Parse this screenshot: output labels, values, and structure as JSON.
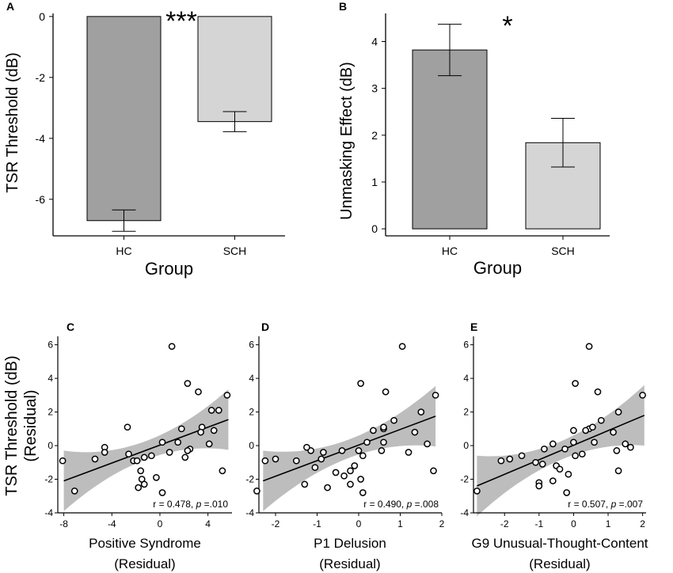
{
  "chart_data": [
    {
      "panel": "A",
      "type": "bar",
      "categories": [
        "HC",
        "SCH"
      ],
      "values": [
        -6.7,
        -3.45
      ],
      "errors": [
        0.35,
        0.33
      ],
      "colors": [
        "#a0a0a0",
        "#d5d5d5"
      ],
      "xlabel": "Group",
      "ylabel": "TSR Threshold (dB)",
      "ylim": [
        -7.2,
        0.1
      ],
      "yticks": [
        0,
        -2,
        -4,
        -6
      ],
      "significance": "***"
    },
    {
      "panel": "B",
      "type": "bar",
      "categories": [
        "HC",
        "SCH"
      ],
      "values": [
        3.82,
        1.84
      ],
      "errors": [
        0.55,
        0.52
      ],
      "colors": [
        "#a0a0a0",
        "#d5d5d5"
      ],
      "xlabel": "Group",
      "ylabel": "Unmasking Effect (dB)",
      "ylim": [
        -0.15,
        4.6
      ],
      "yticks": [
        0,
        1,
        2,
        3,
        4
      ],
      "significance": "*"
    },
    {
      "panel": "C",
      "type": "scatter",
      "xlabel": "Positive Syndrome",
      "xlabel2": "(Residual)",
      "ylabel": "TSR Threshold (dB)",
      "ylabel2": "(Residual)",
      "xlim": [
        -8.5,
        6
      ],
      "ylim": [
        -4,
        6.5
      ],
      "xticks": [
        -8,
        -4,
        0,
        4
      ],
      "yticks": [
        6,
        4,
        2,
        0,
        -2,
        -4
      ],
      "fit": {
        "x": [
          -8,
          5.7
        ],
        "y": [
          -2.1,
          1.55
        ]
      },
      "stat": {
        "prefix": "r = 0.478, ",
        "p": "p",
        "suffix": " =.010"
      },
      "points": [
        {
          "x": 1,
          "y": 5.9
        },
        {
          "x": 2.3,
          "y": 3.7
        },
        {
          "x": 3.2,
          "y": 3.2
        },
        {
          "x": 5.6,
          "y": 3.0
        },
        {
          "x": 3.5,
          "y": 1.1
        },
        {
          "x": 3.4,
          "y": 0.8
        },
        {
          "x": 4.3,
          "y": 2.1
        },
        {
          "x": 4.9,
          "y": 2.1
        },
        {
          "x": 4.5,
          "y": 0.9
        },
        {
          "x": 4.1,
          "y": 0.1
        },
        {
          "x": 1.8,
          "y": 1.0
        },
        {
          "x": 1.5,
          "y": 0.2
        },
        {
          "x": 0.2,
          "y": 0.2
        },
        {
          "x": 2.5,
          "y": -0.2
        },
        {
          "x": 2.3,
          "y": -0.3
        },
        {
          "x": 2.1,
          "y": -0.7
        },
        {
          "x": 5.2,
          "y": -1.5
        },
        {
          "x": -2.7,
          "y": 1.1
        },
        {
          "x": -4.6,
          "y": -0.1
        },
        {
          "x": -4.6,
          "y": -0.4
        },
        {
          "x": -5.4,
          "y": -0.8
        },
        {
          "x": -2.6,
          "y": -0.5
        },
        {
          "x": -2.2,
          "y": -0.9
        },
        {
          "x": -1.9,
          "y": -0.9
        },
        {
          "x": -1.3,
          "y": -0.7
        },
        {
          "x": -1.6,
          "y": -1.5
        },
        {
          "x": -1.5,
          "y": -2.0
        },
        {
          "x": -1.3,
          "y": -2.3
        },
        {
          "x": -1.8,
          "y": -2.5
        },
        {
          "x": -0.3,
          "y": -1.9
        },
        {
          "x": 0.2,
          "y": -2.8
        },
        {
          "x": -0.7,
          "y": -0.6
        },
        {
          "x": 0.8,
          "y": -0.4
        },
        {
          "x": -7.1,
          "y": -2.7
        },
        {
          "x": -8.1,
          "y": -0.9
        }
      ]
    },
    {
      "panel": "D",
      "type": "scatter",
      "xlabel": "P1 Delusion",
      "xlabel2": "(Residual)",
      "xlim": [
        -2.4,
        2
      ],
      "ylim": [
        -4,
        6.5
      ],
      "xticks": [
        -2,
        -1,
        0,
        1,
        2
      ],
      "yticks": [
        6,
        4,
        2,
        0,
        -2,
        -4
      ],
      "fit": {
        "x": [
          -2.3,
          1.85
        ],
        "y": [
          -2.1,
          1.75
        ]
      },
      "stat": {
        "prefix": "r = 0.490, ",
        "p": "p",
        "suffix": " =.008"
      },
      "points": [
        {
          "x": 1.05,
          "y": 5.9
        },
        {
          "x": 0.05,
          "y": 3.7
        },
        {
          "x": 0.65,
          "y": 3.2
        },
        {
          "x": 1.85,
          "y": 3.0
        },
        {
          "x": 1.5,
          "y": 2.0
        },
        {
          "x": 0.85,
          "y": 1.5
        },
        {
          "x": 0.6,
          "y": 1.0
        },
        {
          "x": 0.6,
          "y": 1.1
        },
        {
          "x": 0.35,
          "y": 0.9
        },
        {
          "x": 0.6,
          "y": 0.2
        },
        {
          "x": 1.35,
          "y": 0.8
        },
        {
          "x": 1.65,
          "y": 0.1
        },
        {
          "x": 1.2,
          "y": -0.4
        },
        {
          "x": 0.2,
          "y": 0.2
        },
        {
          "x": 0.55,
          "y": -0.3
        },
        {
          "x": 0.1,
          "y": -0.6
        },
        {
          "x": -0.4,
          "y": -0.3
        },
        {
          "x": -0.1,
          "y": -1.2
        },
        {
          "x": -0.2,
          "y": -1.5
        },
        {
          "x": -0.55,
          "y": -1.6
        },
        {
          "x": -0.2,
          "y": -2.3
        },
        {
          "x": 0.05,
          "y": -2.0
        },
        {
          "x": 0.1,
          "y": -2.8
        },
        {
          "x": -0.35,
          "y": -1.8
        },
        {
          "x": -0.85,
          "y": -0.4
        },
        {
          "x": -0.9,
          "y": -0.8
        },
        {
          "x": -1.15,
          "y": -0.3
        },
        {
          "x": -1.25,
          "y": -0.1
        },
        {
          "x": -1.05,
          "y": -1.3
        },
        {
          "x": -0.75,
          "y": -2.5
        },
        {
          "x": -1.3,
          "y": -2.3
        },
        {
          "x": -1.5,
          "y": -0.9
        },
        {
          "x": -2.0,
          "y": -0.8
        },
        {
          "x": -2.25,
          "y": -0.9
        },
        {
          "x": -2.45,
          "y": -2.7
        },
        {
          "x": 1.8,
          "y": -1.5
        },
        {
          "x": 0.0,
          "y": -0.3
        }
      ]
    },
    {
      "panel": "E",
      "type": "scatter",
      "xlabel": "G9 Unusual-Thought-Content",
      "xlabel2": "(Residual)",
      "xlim": [
        -2.9,
        2.1
      ],
      "ylim": [
        -4,
        6.5
      ],
      "xticks": [
        -2,
        -1,
        0,
        1,
        2
      ],
      "yticks": [
        6,
        4,
        2,
        0,
        -2,
        -4
      ],
      "fit": {
        "x": [
          -2.8,
          2.05
        ],
        "y": [
          -2.4,
          1.8
        ]
      },
      "stat": {
        "prefix": "r = 0.507, ",
        "p": "p",
        "suffix": " =.007"
      },
      "points": [
        {
          "x": 0.45,
          "y": 5.9
        },
        {
          "x": 0.05,
          "y": 3.7
        },
        {
          "x": 0.7,
          "y": 3.2
        },
        {
          "x": 2.0,
          "y": 3.0
        },
        {
          "x": 1.3,
          "y": 2.0
        },
        {
          "x": 0.8,
          "y": 1.5
        },
        {
          "x": 0.45,
          "y": 1.0
        },
        {
          "x": 0.55,
          "y": 1.1
        },
        {
          "x": 0.35,
          "y": 0.9
        },
        {
          "x": 0.0,
          "y": 0.9
        },
        {
          "x": 1.15,
          "y": 0.8
        },
        {
          "x": 0.6,
          "y": 0.2
        },
        {
          "x": 1.5,
          "y": 0.1
        },
        {
          "x": 1.25,
          "y": -0.3
        },
        {
          "x": 0.0,
          "y": 0.2
        },
        {
          "x": -0.25,
          "y": -0.2
        },
        {
          "x": -0.6,
          "y": 0.1
        },
        {
          "x": -0.85,
          "y": -0.2
        },
        {
          "x": 0.05,
          "y": -0.6
        },
        {
          "x": 0.25,
          "y": -0.5
        },
        {
          "x": -0.5,
          "y": -1.2
        },
        {
          "x": -0.4,
          "y": -1.4
        },
        {
          "x": -0.9,
          "y": -1.1
        },
        {
          "x": -1.1,
          "y": -1.0
        },
        {
          "x": -1.0,
          "y": -2.2
        },
        {
          "x": -1.0,
          "y": -2.4
        },
        {
          "x": -0.6,
          "y": -2.1
        },
        {
          "x": -0.2,
          "y": -2.8
        },
        {
          "x": -0.15,
          "y": -1.7
        },
        {
          "x": -1.5,
          "y": -0.6
        },
        {
          "x": -1.85,
          "y": -0.8
        },
        {
          "x": -2.1,
          "y": -0.9
        },
        {
          "x": -2.8,
          "y": -2.7
        },
        {
          "x": 1.3,
          "y": -1.5
        },
        {
          "x": 1.65,
          "y": -0.1
        }
      ]
    }
  ]
}
